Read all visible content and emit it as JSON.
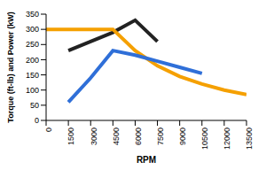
{
  "chart_data": {
    "type": "line",
    "x_label": "RPM",
    "y_label": "Torque (ft-lb) and Power (kW)",
    "x": [
      0,
      1500,
      3000,
      4500,
      6000,
      7500,
      9000,
      10500,
      12000,
      13500
    ],
    "series": [
      {
        "color": "#222222",
        "values": [
          null,
          230,
          260,
          290,
          330,
          260,
          null,
          null,
          null,
          null
        ]
      },
      {
        "color": "#f5a000",
        "values": [
          300,
          300,
          300,
          300,
          230,
          180,
          145,
          120,
          100,
          85
        ]
      },
      {
        "color": "#2f6fd8",
        "values": [
          null,
          60,
          140,
          230,
          215,
          195,
          175,
          155,
          null,
          null
        ]
      }
    ],
    "xlim": [
      0,
      13500
    ],
    "xticks": [
      0,
      1500,
      3000,
      4500,
      6000,
      7500,
      9000,
      10500,
      12000,
      13500
    ],
    "ylim": [
      0,
      350
    ],
    "yticks": [
      0,
      50,
      100,
      150,
      200,
      250,
      300,
      350
    ],
    "grid": false
  }
}
